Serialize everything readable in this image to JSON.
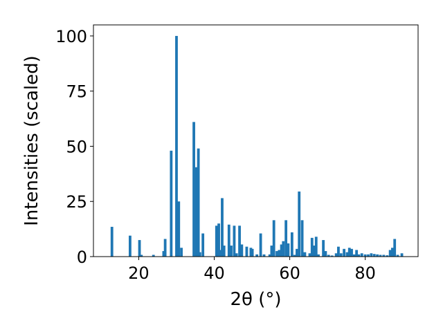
{
  "chart_data": {
    "type": "bar",
    "title": "",
    "xlabel": "2θ (°)",
    "ylabel": "Intensities (scaled)",
    "xlim": [
      8,
      94
    ],
    "ylim": [
      0,
      105
    ],
    "xticks": [
      20,
      40,
      60,
      80
    ],
    "yticks": [
      0,
      25,
      50,
      75,
      100
    ],
    "bar_color": "#1f77b4",
    "grid": false,
    "series": [
      {
        "x": [
          12.9,
          17.7,
          20.2,
          20.7,
          23.9,
          26.6,
          27.0,
          28.6,
          30.0,
          30.6,
          31.3,
          34.6,
          35.3,
          35.8,
          36.2,
          37.0,
          40.6,
          41.2,
          41.8,
          42.1,
          42.6,
          43.9,
          44.5,
          45.3,
          45.9,
          46.7,
          47.3,
          48.6,
          49.7,
          50.1,
          51.3,
          52.3,
          53.2,
          54.7,
          55.2,
          55.8,
          56.6,
          57.2,
          57.8,
          58.3,
          59.0,
          59.6,
          60.6,
          61.3,
          61.9,
          62.5,
          63.3,
          64.0,
          65.3,
          65.9,
          66.4,
          67.0,
          67.6,
          68.9,
          69.5,
          70.3,
          71.2,
          72.3,
          72.9,
          73.6,
          74.4,
          75.2,
          75.8,
          76.4,
          77.1,
          77.7,
          78.3,
          79.1,
          80.0,
          80.8,
          81.6,
          82.4,
          83.2,
          84.0,
          84.9,
          85.8,
          86.6,
          87.2,
          87.8,
          88.6,
          89.7
        ],
        "y": [
          13.5,
          9.5,
          7.5,
          0.8,
          0.8,
          2.5,
          8.0,
          48.0,
          100.0,
          25.0,
          4.0,
          61.0,
          40.5,
          49.0,
          2.0,
          10.5,
          14.0,
          15.0,
          3.0,
          26.5,
          5.0,
          14.5,
          5.0,
          14.0,
          1.5,
          14.0,
          5.5,
          4.5,
          4.0,
          3.5,
          1.0,
          10.5,
          1.0,
          1.0,
          5.0,
          16.5,
          2.5,
          3.0,
          5.5,
          7.0,
          16.5,
          6.0,
          11.0,
          0.8,
          3.5,
          29.5,
          16.5,
          2.0,
          1.5,
          8.5,
          5.0,
          9.0,
          1.0,
          7.5,
          2.5,
          0.8,
          0.5,
          1.5,
          4.5,
          1.5,
          3.5,
          2.0,
          4.0,
          3.5,
          1.0,
          3.0,
          1.0,
          1.5,
          1.0,
          1.0,
          1.5,
          1.2,
          1.0,
          0.8,
          0.8,
          0.6,
          3.0,
          4.0,
          8.0,
          0.8,
          1.5
        ]
      }
    ]
  }
}
